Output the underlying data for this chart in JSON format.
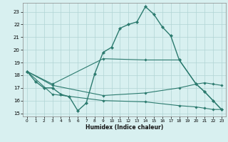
{
  "xlabel": "Humidex (Indice chaleur)",
  "color": "#2b7a6e",
  "bg_color": "#d8f0f0",
  "grid_color": "#b0d4d4",
  "xlim": [
    -0.5,
    23.5
  ],
  "ylim": [
    14.75,
    23.7
  ],
  "yticks": [
    15,
    16,
    17,
    18,
    19,
    20,
    21,
    22,
    23
  ],
  "xticks": [
    0,
    1,
    2,
    3,
    4,
    5,
    6,
    7,
    8,
    9,
    10,
    11,
    12,
    13,
    14,
    15,
    16,
    17,
    18,
    19,
    20,
    21,
    22,
    23
  ],
  "line1_x": [
    0,
    1,
    2,
    3,
    4,
    5,
    6,
    7,
    8,
    9,
    10,
    11,
    12,
    13,
    14,
    15,
    16,
    17,
    18,
    20,
    21,
    22,
    23
  ],
  "line1_y": [
    18.3,
    17.5,
    17.0,
    17.0,
    16.5,
    16.3,
    15.2,
    15.8,
    18.1,
    19.8,
    20.2,
    21.7,
    22.0,
    22.2,
    23.4,
    22.8,
    21.8,
    21.1,
    19.2,
    17.3,
    16.7,
    16.0,
    15.3
  ],
  "line2_x": [
    0,
    3,
    9,
    14,
    18,
    20,
    21,
    22,
    23
  ],
  "line2_y": [
    18.3,
    17.3,
    19.3,
    19.2,
    19.2,
    17.3,
    16.7,
    16.0,
    15.3
  ],
  "line3_x": [
    0,
    3,
    9,
    14,
    18,
    20,
    21,
    22,
    23
  ],
  "line3_y": [
    18.3,
    17.2,
    16.4,
    16.6,
    17.0,
    17.3,
    17.4,
    17.3,
    17.2
  ],
  "line4_x": [
    0,
    3,
    9,
    14,
    18,
    20,
    21,
    22,
    23
  ],
  "line4_y": [
    18.3,
    16.5,
    16.0,
    15.9,
    15.6,
    15.5,
    15.4,
    15.3,
    15.3
  ]
}
